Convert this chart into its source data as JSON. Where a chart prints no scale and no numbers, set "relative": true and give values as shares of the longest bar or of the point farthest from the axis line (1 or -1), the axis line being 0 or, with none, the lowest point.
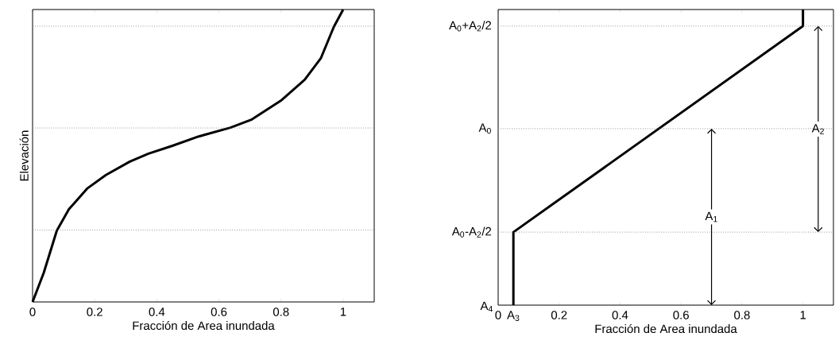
{
  "chart_data": [
    {
      "type": "line",
      "xlabel": "Fracción de Area inundada",
      "ylabel": "Elevación",
      "relative": true,
      "xlim": [
        0,
        1.1
      ],
      "xticks": [
        0,
        0.2,
        0.4,
        0.6,
        0.8,
        1
      ],
      "x": [
        0,
        0.036,
        0.078,
        0.117,
        0.177,
        0.236,
        0.313,
        0.373,
        0.45,
        0.535,
        0.637,
        0.706,
        0.799,
        0.876,
        0.928,
        0.97,
        1.0
      ],
      "series": [
        {
          "color": "#000000",
          "values": [
            0,
            0.1,
            0.244,
            0.317,
            0.389,
            0.434,
            0.48,
            0.507,
            0.534,
            0.566,
            0.596,
            0.624,
            0.688,
            0.76,
            0.833,
            0.941,
            1.0
          ]
        }
      ],
      "ref_lines": [
        {
          "axis": "y",
          "value": 0.943,
          "color": "#808080",
          "line_style": "dotted"
        },
        {
          "axis": "y",
          "value": 0.595,
          "color": "#808080",
          "line_style": "dotted"
        },
        {
          "axis": "y",
          "value": 0.246,
          "color": "#808080",
          "line_style": "dotted"
        }
      ],
      "marker": "none",
      "line_style": "solid"
    },
    {
      "type": "line",
      "xlabel": "Fracción de Area inundada",
      "relative": true,
      "xlim": [
        0,
        1.1
      ],
      "xticks": [
        0,
        0.2,
        0.4,
        0.6,
        0.8,
        1
      ],
      "x": [
        0.05,
        0.05,
        1.0,
        1.0
      ],
      "series": [
        {
          "color": "#000000",
          "values": [
            0,
            0.247,
            0.944,
            1.0
          ]
        }
      ],
      "ref_lines": [
        {
          "axis": "y",
          "value": 0.944,
          "label": "A$_{0}$+A$_{2}$/2",
          "color": "#808080",
          "line_style": "dotted"
        },
        {
          "axis": "y",
          "value": 0.597,
          "label": "A$_{0}$",
          "color": "#808080",
          "line_style": "dotted"
        },
        {
          "axis": "y",
          "value": 0.247,
          "label": "A$_{0}$-A$_{2}$/2",
          "color": "#808080",
          "line_style": "dotted"
        }
      ],
      "annotations": [
        {
          "text": "A$_{1}$",
          "x": 0.7,
          "y": 0.597
        },
        {
          "text": "A$_{2}$",
          "x": 1.05,
          "y": 0.944
        },
        {
          "text": "A$_{3}$",
          "x": 0.05,
          "y": 0
        },
        "A$_{4}$"
      ],
      "marker": "none",
      "line_style": "solid"
    }
  ]
}
